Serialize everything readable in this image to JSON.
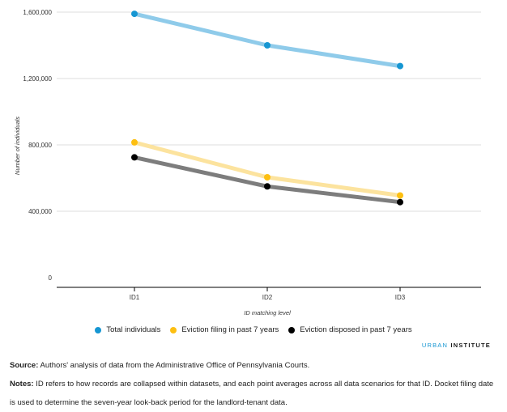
{
  "chart_data": {
    "type": "line",
    "categories": [
      "ID1",
      "ID2",
      "ID3"
    ],
    "series": [
      {
        "name": "Total individuals",
        "color": "#8fcbea",
        "marker": "#1696d2",
        "values": [
          1590000,
          1400000,
          1275000
        ]
      },
      {
        "name": "Eviction filing in past 7 years",
        "color": "#fce39e",
        "marker": "#fdbf11",
        "values": [
          815000,
          605000,
          495000
        ]
      },
      {
        "name": "Eviction disposed in past 7 years",
        "color": "#7d7d7d",
        "marker": "#000000",
        "values": [
          725000,
          550000,
          455000
        ]
      }
    ],
    "yticks": [
      0,
      400000,
      800000,
      1200000,
      1600000
    ],
    "ytick_labels": [
      "0",
      "400,000",
      "800,000",
      "1,200,000",
      "1,600,000"
    ],
    "ylim": [
      0,
      1600000
    ],
    "xlabel": "ID matching level",
    "ylabel": "Number of individuals",
    "grid": true,
    "legend_position": "bottom"
  },
  "branding": {
    "part1": "URBAN",
    "part2": "INSTITUTE"
  },
  "footer": {
    "source_label": "Source:",
    "source_text": " Authors' analysis of data from the Administrative Office of Pennsylvania Courts.",
    "notes_label": "Notes:",
    "notes_text": " ID refers to how records are collapsed within datasets, and each point averages across all data scenarios for that ID. Docket filing date is used to determine the seven-year look-back period for the landlord-tenant data."
  }
}
